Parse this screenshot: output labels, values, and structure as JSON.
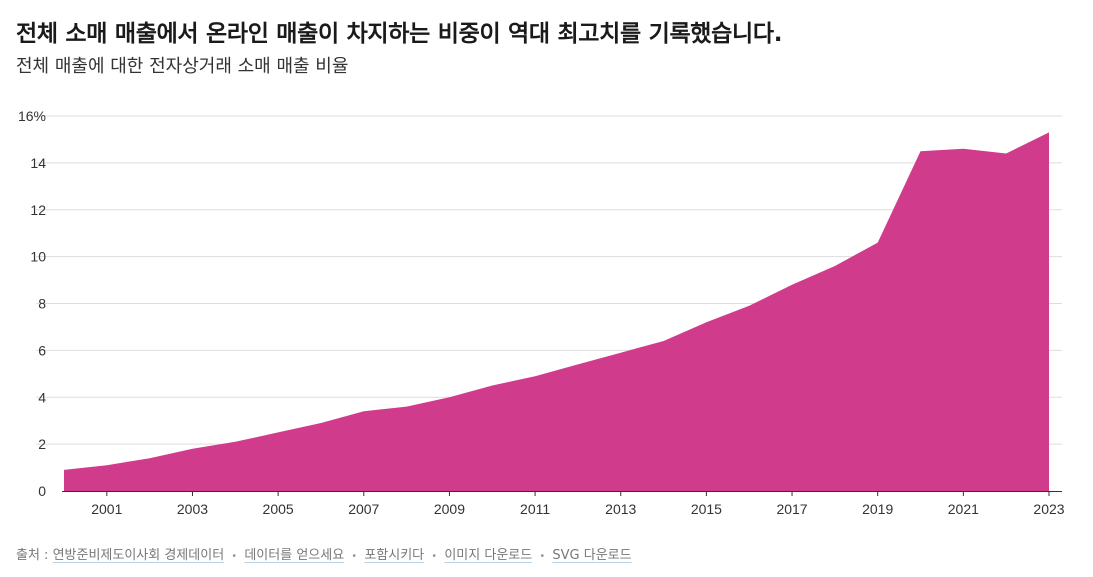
{
  "header": {
    "title": "전체 소매 매출에서 온라인 매출이 차지하는 비중이 역대 최고치를 기록했습니다.",
    "subtitle": "전체 매출에 대한 전자상거래 소매 매출 비율"
  },
  "footer": {
    "source_label": "출처 :",
    "source_link": "연방준비제도이사회 경제데이터",
    "data_link": "데이터를 얻으세요",
    "embed_link": "포함시키다",
    "image_link": "이미지 다운로드",
    "svg_link": "SVG 다운로드"
  },
  "colors": {
    "area": "#d13b8c",
    "grid": "#dddddd",
    "baseline": "#333333"
  },
  "chart_data": {
    "type": "area",
    "title": "전체 소매 매출에서 온라인 매출이 차지하는 비중이 역대 최고치를 기록했습니다.",
    "subtitle": "전체 매출에 대한 전자상거래 소매 매출 비율",
    "xlabel": "",
    "ylabel": "",
    "x": [
      2000,
      2001,
      2002,
      2003,
      2004,
      2005,
      2006,
      2007,
      2008,
      2009,
      2010,
      2011,
      2012,
      2013,
      2014,
      2015,
      2016,
      2017,
      2018,
      2019,
      2020,
      2021,
      2022,
      2023
    ],
    "series": [
      {
        "values": [
          0.9,
          1.1,
          1.4,
          1.8,
          2.1,
          2.5,
          2.9,
          3.4,
          3.6,
          4.0,
          4.5,
          4.9,
          5.4,
          5.9,
          6.4,
          7.2,
          7.9,
          8.8,
          9.6,
          10.6,
          14.5,
          14.6,
          14.4,
          15.3
        ]
      }
    ],
    "xticks": [
      "2001",
      "2003",
      "2005",
      "2007",
      "2009",
      "2011",
      "2013",
      "2015",
      "2017",
      "2019",
      "2021",
      "2023"
    ],
    "yticks": [
      "0",
      "2",
      "4",
      "6",
      "8",
      "10",
      "12",
      "14",
      "16%"
    ],
    "ylim": [
      0,
      16
    ],
    "xlim": [
      2000,
      2023
    ],
    "grid": true
  }
}
